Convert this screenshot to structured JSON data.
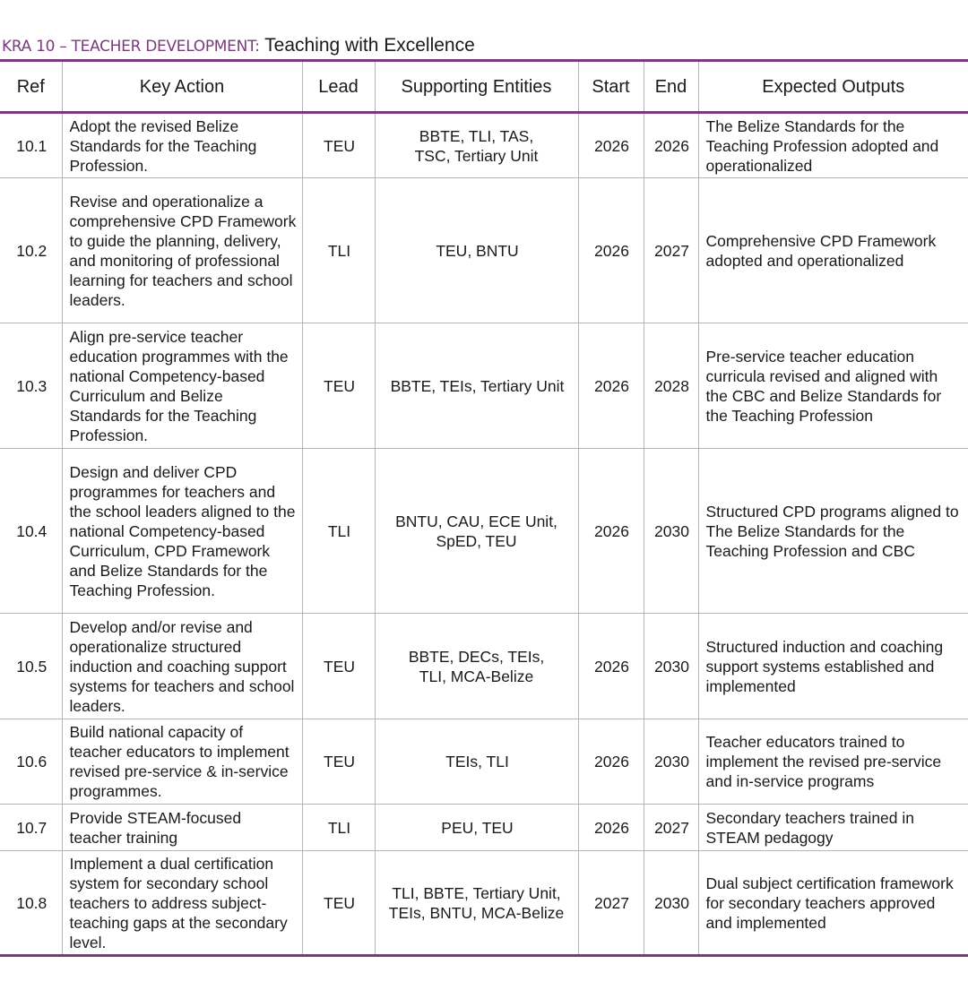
{
  "title": {
    "prefix": "KRA 10 – TEACHER DEVELOPMENT:",
    "subtitle": " Teaching with Excellence"
  },
  "colors": {
    "accent": "#7b3a7e",
    "grid": "#b5b5b5",
    "text": "#1a1a1a"
  },
  "table": {
    "headers": {
      "ref": "Ref",
      "action": "Key Action",
      "lead": "Lead",
      "supporting": "Supporting Entities",
      "start": "Start",
      "end": "End",
      "outputs": "Expected Outputs"
    },
    "rows": [
      {
        "ref": "10.1",
        "action": "Adopt the revised Belize Standards for the Teaching Profession.",
        "lead": "TEU",
        "supporting": "BBTE, TLI, TAS, TSC, Tertiary Unit",
        "start": "2026",
        "end": "2026",
        "outputs": "The Belize Standards for the Teaching Profession adopted and operationalized"
      },
      {
        "ref": "10.2",
        "action": "Revise and operationalize a comprehensive CPD Framework to guide the planning, delivery, and monitoring of professional learning for teachers and school leaders.",
        "lead": "TLI",
        "supporting": "TEU, BNTU",
        "start": "2026",
        "end": "2027",
        "outputs": "Comprehensive CPD Framework adopted and operationalized"
      },
      {
        "ref": "10.3",
        "action": "Align pre-service teacher education programmes with the national Competency-based Curriculum and Belize Standards for the Teaching Profession.",
        "lead": "TEU",
        "supporting": "BBTE, TEIs, Tertiary Unit",
        "start": "2026",
        "end": "2028",
        "outputs": "Pre-service teacher education curricula revised and aligned with the CBC and Belize Standards for the Teaching Profession"
      },
      {
        "ref": "10.4",
        "action": "Design and deliver CPD programmes for teachers and the school leaders aligned to the national Competency-based Curriculum, CPD Framework and Belize Standards for the Teaching Profession.",
        "lead": "TLI",
        "supporting": "BNTU, CAU, ECE Unit, SpED, TEU",
        "start": "2026",
        "end": "2030",
        "outputs": "Structured CPD programs aligned to The Belize Standards for the Teaching Profession and CBC"
      },
      {
        "ref": "10.5",
        "action": "Develop and/or revise and operationalize structured induction and coaching support systems for teachers and school leaders.",
        "lead": "TEU",
        "supporting": "BBTE, DECs, TEIs, TLI, MCA-Belize",
        "start": "2026",
        "end": "2030",
        "outputs": "Structured induction and coaching support systems established and implemented"
      },
      {
        "ref": "10.6",
        "action": "Build national capacity of teacher educators to implement revised pre-service & in-service programmes.",
        "lead": "TEU",
        "supporting": "TEIs, TLI",
        "start": "2026",
        "end": "2030",
        "outputs": "Teacher educators trained to implement the revised pre-service and in-service programs"
      },
      {
        "ref": "10.7",
        "action": "Provide STEAM-focused teacher training",
        "lead": "TLI",
        "supporting": "PEU, TEU",
        "start": "2026",
        "end": "2027",
        "outputs": "Secondary teachers trained in STEAM pedagogy"
      },
      {
        "ref": "10.8",
        "action": "Implement a dual certification system for secondary school teachers to address subject-teaching gaps at the secondary level.",
        "lead": "TEU",
        "supporting": "TLI, BBTE, Tertiary Unit, TEIs, BNTU, MCA-Belize",
        "start": "2027",
        "end": "2030",
        "outputs": "Dual subject certification framework for secondary teachers approved and implemented"
      }
    ]
  }
}
